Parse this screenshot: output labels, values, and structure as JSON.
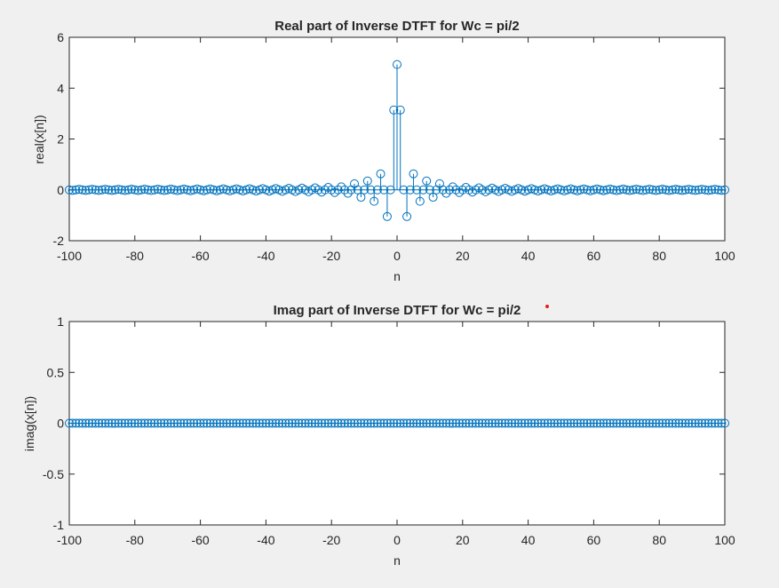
{
  "chart_data": [
    {
      "type": "stem",
      "title": "Real part of Inverse DTFT for Wc = pi/2",
      "xlabel": "n",
      "ylabel": "real(x[n])",
      "xlim": [
        -100,
        100
      ],
      "ylim": [
        -2,
        6
      ],
      "xticks": [
        "-100",
        "-80",
        "-60",
        "-40",
        "-20",
        "0",
        "20",
        "40",
        "60",
        "80",
        "100"
      ],
      "yticks": [
        "-2",
        "0",
        "2",
        "4",
        "6"
      ],
      "x_start": -100,
      "x_end": 100,
      "x_step": 1,
      "values_rule": "sin(pi*n/2)/(pi*n/(2*pi))",
      "peak": {
        "n": 0,
        "value": 4.93
      },
      "nonzero_points": [
        {
          "n": -13,
          "value": 0.24
        },
        {
          "n": -11,
          "value": -0.29
        },
        {
          "n": -9,
          "value": 0.35
        },
        {
          "n": -7,
          "value": -0.45
        },
        {
          "n": -5,
          "value": 0.63
        },
        {
          "n": -3,
          "value": -1.05
        },
        {
          "n": -1,
          "value": 3.14
        },
        {
          "n": 0,
          "value": 4.93
        },
        {
          "n": 1,
          "value": 3.14
        },
        {
          "n": 3,
          "value": -1.05
        },
        {
          "n": 5,
          "value": 0.63
        },
        {
          "n": 7,
          "value": -0.45
        },
        {
          "n": 9,
          "value": 0.35
        },
        {
          "n": 11,
          "value": -0.29
        },
        {
          "n": 13,
          "value": 0.24
        }
      ],
      "color": "#0072bd",
      "grid": false
    },
    {
      "type": "stem",
      "title": "Imag part of Inverse DTFT for Wc = pi/2",
      "xlabel": "n",
      "ylabel": "imag(x[n])",
      "xlim": [
        -100,
        100
      ],
      "ylim": [
        -1,
        1
      ],
      "xticks": [
        "-100",
        "-80",
        "-60",
        "-40",
        "-20",
        "0",
        "20",
        "40",
        "60",
        "80",
        "100"
      ],
      "yticks": [
        "-1",
        "-0.5",
        "0",
        "0.5",
        "1"
      ],
      "x_start": -100,
      "x_end": 100,
      "x_step": 1,
      "constant_value": 0,
      "color": "#0072bd",
      "grid": false
    }
  ]
}
